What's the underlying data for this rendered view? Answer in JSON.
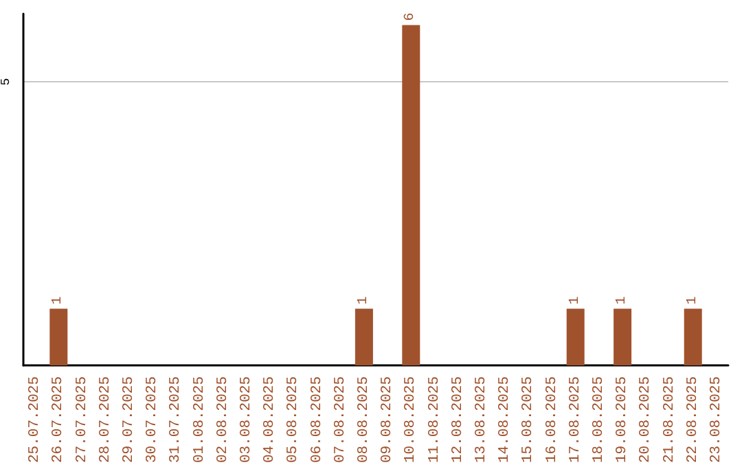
{
  "chart_data": {
    "type": "bar",
    "categories": [
      "25.07.2025",
      "26.07.2025",
      "27.07.2025",
      "28.07.2025",
      "29.07.2025",
      "30.07.2025",
      "31.07.2025",
      "01.08.2025",
      "02.08.2025",
      "03.08.2025",
      "04.08.2025",
      "05.08.2025",
      "06.08.2025",
      "07.08.2025",
      "08.08.2025",
      "09.08.2025",
      "10.08.2025",
      "11.08.2025",
      "12.08.2025",
      "13.08.2025",
      "14.08.2025",
      "15.08.2025",
      "16.08.2025",
      "17.08.2025",
      "18.08.2025",
      "19.08.2025",
      "20.08.2025",
      "21.08.2025",
      "22.08.2025",
      "23.08.2025"
    ],
    "values": [
      0,
      1,
      0,
      0,
      0,
      0,
      0,
      0,
      0,
      0,
      0,
      0,
      0,
      0,
      1,
      0,
      6,
      0,
      0,
      0,
      0,
      0,
      0,
      1,
      0,
      1,
      0,
      0,
      1,
      0
    ],
    "value_labels": [
      null,
      "1",
      null,
      null,
      null,
      null,
      null,
      null,
      null,
      null,
      null,
      null,
      null,
      null,
      "1",
      null,
      "6",
      null,
      null,
      null,
      null,
      null,
      null,
      "1",
      null,
      "1",
      null,
      null,
      "1",
      null
    ],
    "color": "#a0522d",
    "ylim": [
      0,
      6.2
    ],
    "yticks": [
      5
    ],
    "grid": "y"
  }
}
